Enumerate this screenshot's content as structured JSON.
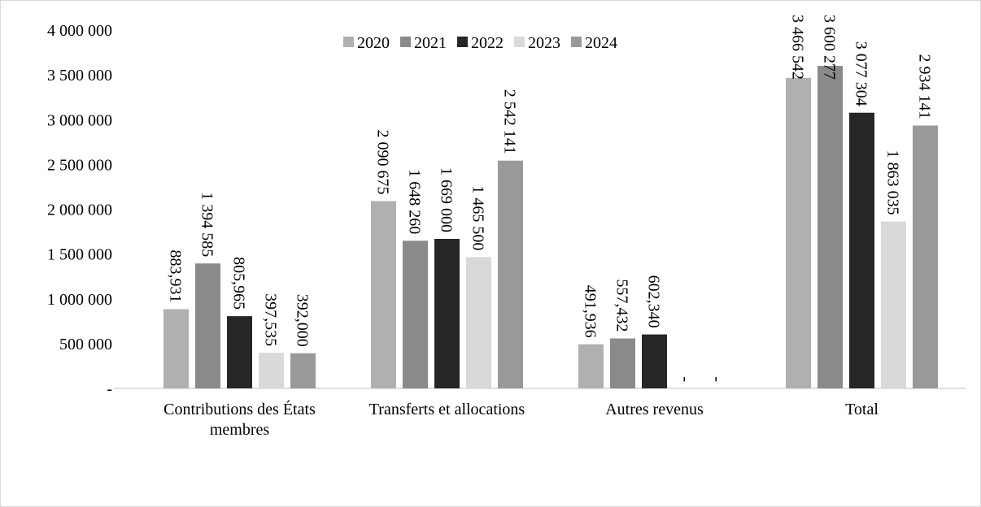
{
  "chart_data": {
    "type": "bar",
    "categories": [
      "Contributions des États membres",
      "Transferts et allocations",
      "Autres revenus",
      "Total"
    ],
    "series": [
      {
        "name": "2020",
        "color": "#b0b0b0",
        "values": [
          883931,
          2090675,
          491936,
          3466542
        ],
        "value_labels": [
          "883,931",
          "2 090 675",
          "491,936",
          "3 466 542"
        ]
      },
      {
        "name": "2021",
        "color": "#8a8a8a",
        "values": [
          1394585,
          1648260,
          557432,
          3600277
        ],
        "value_labels": [
          "1 394 585",
          "1 648 260",
          "557,432",
          "3 600 277"
        ]
      },
      {
        "name": "2022",
        "color": "#262626",
        "values": [
          805965,
          1669000,
          602340,
          3077304
        ],
        "value_labels": [
          "805,965",
          "1 669 000",
          "602,340",
          "3 077 304"
        ]
      },
      {
        "name": "2023",
        "color": "#d9d9d9",
        "values": [
          397535,
          1465500,
          0,
          1863035
        ],
        "value_labels": [
          "397,535",
          "1 465 500",
          "-",
          "1 863 035"
        ]
      },
      {
        "name": "2024",
        "color": "#999999",
        "values": [
          392000,
          2542141,
          0,
          2934141
        ],
        "value_labels": [
          "392,000",
          "2 542 141",
          "-",
          "2 934 141"
        ]
      }
    ],
    "ylim": [
      0,
      4000000
    ],
    "yticks": [
      {
        "value": 0,
        "label": "-"
      },
      {
        "value": 500000,
        "label": "500 000"
      },
      {
        "value": 1000000,
        "label": "1 000 000"
      },
      {
        "value": 1500000,
        "label": "1 500 000"
      },
      {
        "value": 2000000,
        "label": "2 000 000"
      },
      {
        "value": 2500000,
        "label": "2 500 000"
      },
      {
        "value": 3000000,
        "label": "3 000 000"
      },
      {
        "value": 3500000,
        "label": "3 500 000"
      },
      {
        "value": 4000000,
        "label": "4 000 000"
      }
    ],
    "grid": false,
    "legend": "top"
  }
}
